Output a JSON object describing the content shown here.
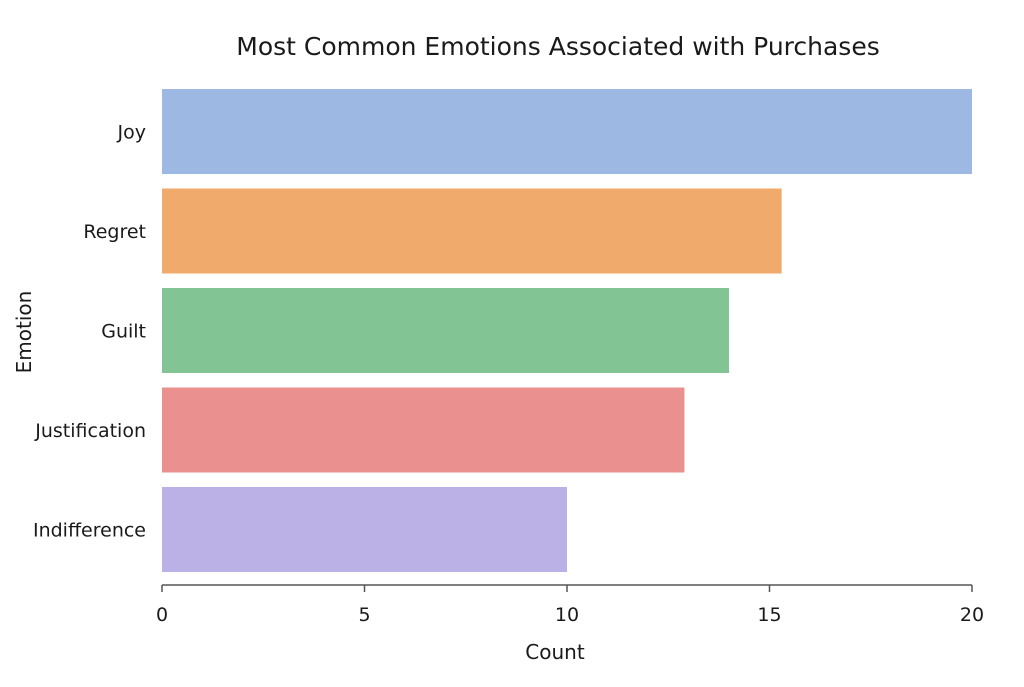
{
  "chart_data": {
    "type": "bar",
    "orientation": "horizontal",
    "title": "Most Common Emotions Associated with Purchases",
    "xlabel": "Count",
    "ylabel": "Emotion",
    "categories": [
      "Joy",
      "Regret",
      "Guilt",
      "Justification",
      "Indifference"
    ],
    "values": [
      20,
      15.3,
      14,
      12.9,
      10
    ],
    "colors": [
      "#9db8e2",
      "#f0aa6b",
      "#82c493",
      "#ea908f",
      "#bbb1e6"
    ],
    "xlim": [
      0,
      20
    ],
    "xticks": [
      0,
      5,
      10,
      15,
      20
    ],
    "grid": false,
    "legend": "none"
  }
}
